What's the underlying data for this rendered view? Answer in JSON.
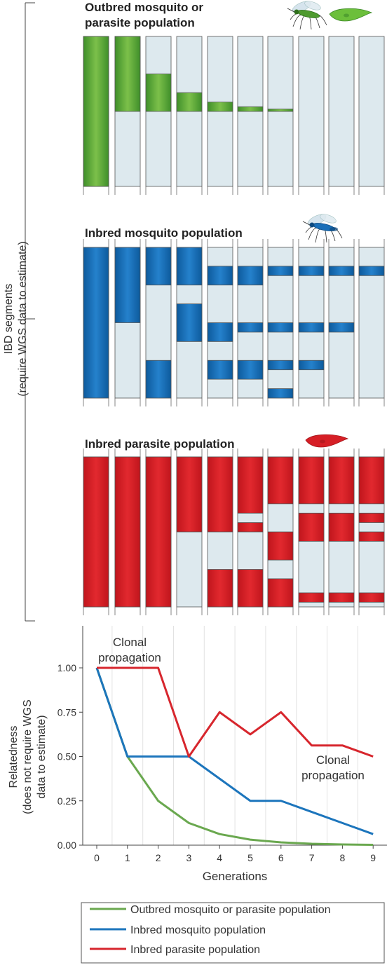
{
  "side_label": {
    "line1": "IBD segments",
    "line2": "(require WGS data to estimate)"
  },
  "panels": [
    {
      "title_lines": [
        "Outbred mosquito or",
        "parasite population"
      ],
      "color": "#5aa637",
      "color_dark": "#3f8a2a",
      "icons": [
        "mosquito-icon",
        "parasite-icon"
      ],
      "columns": [
        [
          [
            0,
            1
          ]
        ],
        [
          [
            0,
            0.5
          ]
        ],
        [
          [
            0.25,
            0.5
          ]
        ],
        [
          [
            0.375,
            0.5
          ]
        ],
        [
          [
            0.4375,
            0.5
          ]
        ],
        [
          [
            0.46875,
            0.5
          ]
        ],
        [
          [
            0.484,
            0.5
          ]
        ],
        [],
        [],
        []
      ]
    },
    {
      "title_lines": [
        "Inbred mosquito population"
      ],
      "color": "#1a6fb8",
      "color_dark": "#0d5a9c",
      "icons": [
        "mosquito-icon"
      ],
      "columns": [
        [
          [
            0,
            1
          ]
        ],
        [
          [
            0,
            0.5
          ]
        ],
        [
          [
            0,
            0.25
          ],
          [
            0.75,
            1
          ]
        ],
        [
          [
            0,
            0.25
          ],
          [
            0.375,
            0.625
          ]
        ],
        [
          [
            0.125,
            0.25
          ],
          [
            0.5,
            0.625
          ],
          [
            0.75,
            0.875
          ]
        ],
        [
          [
            0.125,
            0.25
          ],
          [
            0.5,
            0.5625
          ],
          [
            0.75,
            0.875
          ]
        ],
        [
          [
            0.125,
            0.1875
          ],
          [
            0.5,
            0.5625
          ],
          [
            0.75,
            0.8125
          ],
          [
            0.9375,
            1
          ]
        ],
        [
          [
            0.125,
            0.1875
          ],
          [
            0.5,
            0.5625
          ],
          [
            0.75,
            0.8125
          ]
        ],
        [
          [
            0.125,
            0.1875
          ],
          [
            0.5,
            0.5625
          ]
        ],
        [
          [
            0.125,
            0.1875
          ]
        ]
      ]
    },
    {
      "title_lines": [
        "Inbred parasite population"
      ],
      "color": "#d61f26",
      "color_dark": "#b5161d",
      "icons": [
        "parasite-icon"
      ],
      "columns": [
        [
          [
            0,
            1
          ]
        ],
        [
          [
            0,
            1
          ]
        ],
        [
          [
            0,
            1
          ]
        ],
        [
          [
            0,
            0.5
          ]
        ],
        [
          [
            0,
            0.5
          ],
          [
            0.75,
            1
          ]
        ],
        [
          [
            0,
            0.375
          ],
          [
            0.4375,
            0.5
          ],
          [
            0.75,
            1
          ]
        ],
        [
          [
            0,
            0.3125
          ],
          [
            0.5,
            0.6875
          ],
          [
            0.8125,
            1
          ]
        ],
        [
          [
            0,
            0.3125
          ],
          [
            0.375,
            0.5625
          ],
          [
            0.9063,
            0.9688
          ]
        ],
        [
          [
            0,
            0.3125
          ],
          [
            0.375,
            0.5625
          ],
          [
            0.9063,
            0.9688
          ]
        ],
        [
          [
            0,
            0.3125
          ],
          [
            0.375,
            0.4375
          ],
          [
            0.5,
            0.5625
          ],
          [
            0.9063,
            0.9688
          ]
        ]
      ]
    }
  ],
  "chart_data": {
    "type": "line",
    "x": [
      0,
      1,
      2,
      3,
      4,
      5,
      6,
      7,
      8,
      9
    ],
    "xlabel": "Generations",
    "ylabel_lines": [
      "Relatedness",
      "(does not require WGS",
      "data to estimate)"
    ],
    "ylim": [
      0,
      1
    ],
    "yticks": [
      "0.00",
      "0.25",
      "0.50",
      "0.75",
      "1.00"
    ],
    "grid": "vertical",
    "series": [
      {
        "name": "Outbred mosquito or parasite population",
        "color": "#6aa84f",
        "values": [
          1.0,
          0.5,
          0.25,
          0.125,
          0.0625,
          0.03125,
          0.015625,
          0.0078,
          0.0039,
          0.002
        ]
      },
      {
        "name": "Inbred mosquito population",
        "color": "#1c75bc",
        "values": [
          1.0,
          0.5,
          0.5,
          0.5,
          0.375,
          0.25,
          0.25,
          0.1875,
          0.125,
          0.0625
        ]
      },
      {
        "name": "Inbred parasite population",
        "color": "#d7262d",
        "values": [
          1.0,
          1.0,
          1.0,
          0.5,
          0.75,
          0.625,
          0.75,
          0.5625,
          0.5625,
          0.5
        ]
      }
    ],
    "annotations": [
      {
        "lines": [
          "Clonal",
          "propagation"
        ]
      },
      {
        "lines": [
          "Clonal",
          "propagation"
        ]
      }
    ],
    "legend": "bottom"
  }
}
